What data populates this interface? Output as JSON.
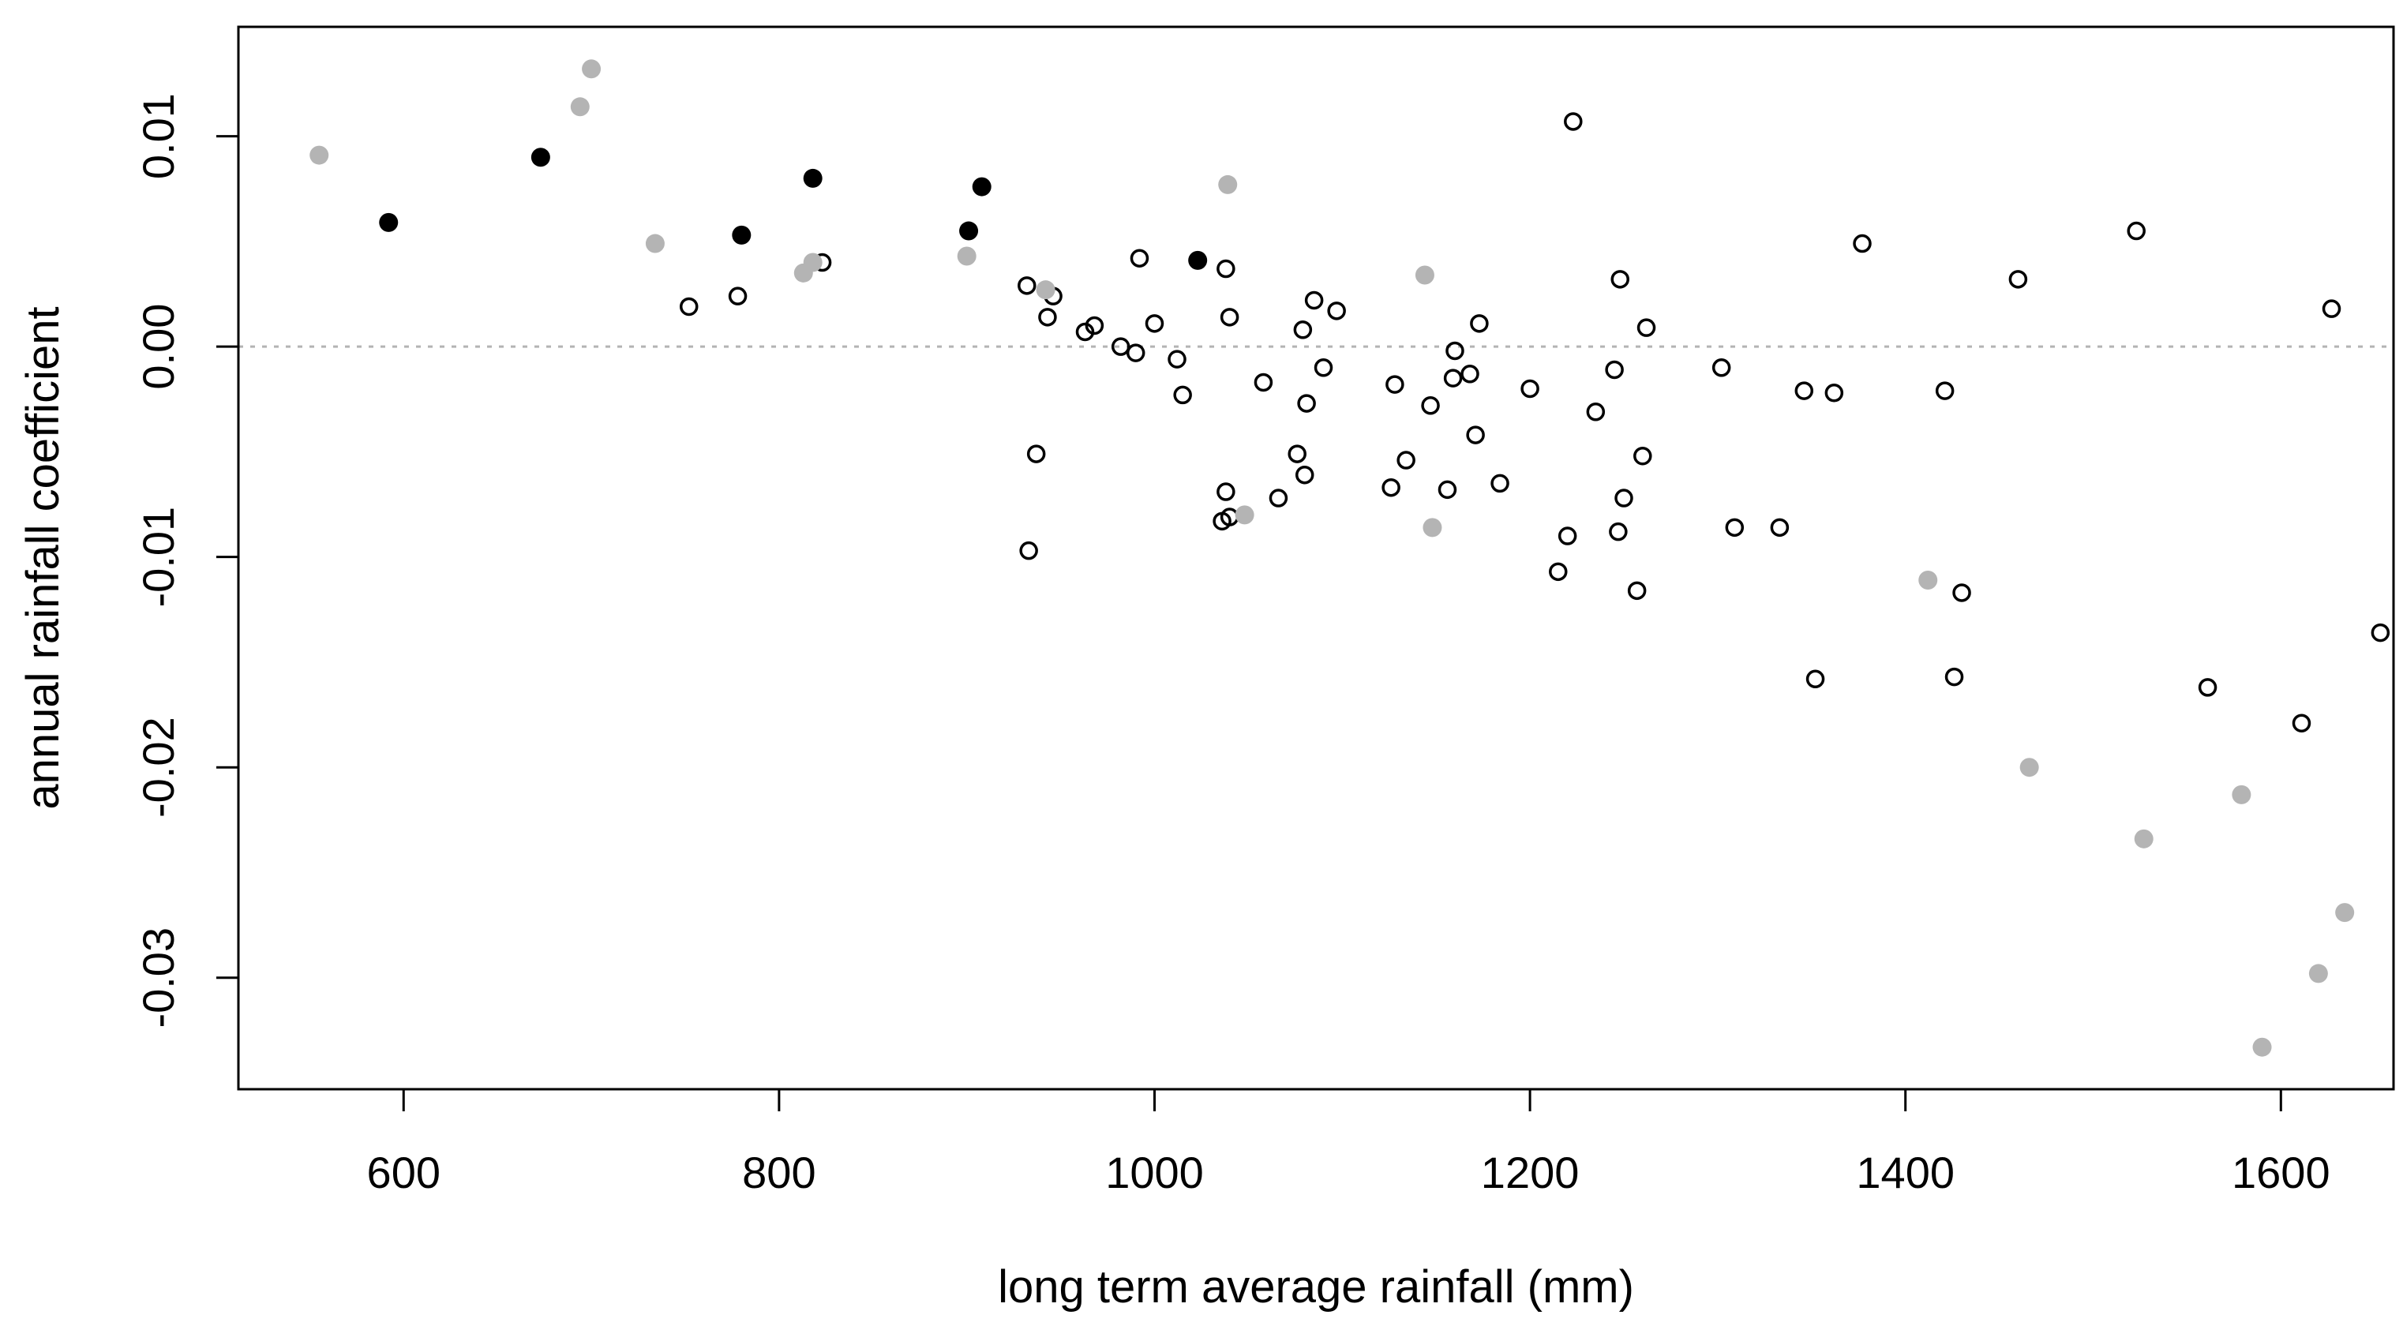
{
  "chart_data": {
    "type": "scatter",
    "title": "",
    "xlabel": "long term average rainfall (mm)",
    "ylabel": "annual rainfall coefficient",
    "xlim": [
      512,
      1660
    ],
    "ylim": [
      -0.0353,
      0.0152
    ],
    "x_ticks": [
      600,
      800,
      1000,
      1200,
      1400,
      1600
    ],
    "x_tick_labels": [
      "600",
      "800",
      "1000",
      "1200",
      "1400",
      "1600"
    ],
    "y_ticks": [
      0.01,
      0.0,
      -0.01,
      -0.02,
      -0.03
    ],
    "y_tick_labels": [
      "0.01",
      "0.00",
      "-0.01",
      "-0.02",
      "-0.03"
    ],
    "reference_line": {
      "y": 0.0,
      "style": "dotted",
      "color": "#b4b4b4"
    },
    "grid": false,
    "legend": "none",
    "series": [
      {
        "name": "solid-black",
        "marker": "filled",
        "color": "#000000",
        "points": [
          [
            592,
            0.0059
          ],
          [
            673,
            0.009
          ],
          [
            780,
            0.0053
          ],
          [
            818,
            0.008
          ],
          [
            901,
            0.0055
          ],
          [
            908,
            0.0076
          ],
          [
            1023,
            0.0041
          ]
        ]
      },
      {
        "name": "solid-grey",
        "marker": "filled",
        "color": "#b4b4b4",
        "points": [
          [
            555,
            0.0091
          ],
          [
            694,
            0.0114
          ],
          [
            700,
            0.0132
          ],
          [
            734,
            0.0049
          ],
          [
            813,
            0.0035
          ],
          [
            818,
            0.004
          ],
          [
            900,
            0.0043
          ],
          [
            942,
            0.0027
          ],
          [
            1039,
            0.0077
          ],
          [
            1048,
            -0.008
          ],
          [
            1144,
            0.0034
          ],
          [
            1148,
            -0.0086
          ],
          [
            1412,
            -0.0111
          ],
          [
            1466,
            -0.02
          ],
          [
            1527,
            -0.0234
          ],
          [
            1579,
            -0.0213
          ],
          [
            1590,
            -0.0333
          ],
          [
            1620,
            -0.0298
          ],
          [
            1634,
            -0.0269
          ]
        ]
      },
      {
        "name": "hollow",
        "marker": "open",
        "color": "#000000",
        "points": [
          [
            752,
            0.0019
          ],
          [
            778,
            0.0024
          ],
          [
            823,
            0.004
          ],
          [
            932,
            0.0029
          ],
          [
            943,
            0.0014
          ],
          [
            946,
            0.0024
          ],
          [
            937,
            -0.0051
          ],
          [
            933,
            -0.0097
          ],
          [
            963,
            0.0007
          ],
          [
            968,
            0.001
          ],
          [
            982,
            0.0
          ],
          [
            990,
            -0.0003
          ],
          [
            992,
            0.0042
          ],
          [
            1000,
            0.0011
          ],
          [
            1012,
            -0.0006
          ],
          [
            1015,
            -0.0023
          ],
          [
            1038,
            0.0037
          ],
          [
            1040,
            0.0014
          ],
          [
            1038,
            -0.0069
          ],
          [
            1036,
            -0.0083
          ],
          [
            1040,
            -0.0081
          ],
          [
            1058,
            -0.0017
          ],
          [
            1066,
            -0.0072
          ],
          [
            1076,
            -0.0051
          ],
          [
            1079,
            0.0008
          ],
          [
            1080,
            -0.0061
          ],
          [
            1081,
            -0.0027
          ],
          [
            1085,
            0.0022
          ],
          [
            1090,
            -0.001
          ],
          [
            1097,
            0.0017
          ],
          [
            1126,
            -0.0067
          ],
          [
            1128,
            -0.0018
          ],
          [
            1134,
            -0.0054
          ],
          [
            1147,
            -0.0028
          ],
          [
            1156,
            -0.0068
          ],
          [
            1159,
            -0.0015
          ],
          [
            1160,
            -0.0002
          ],
          [
            1168,
            -0.0013
          ],
          [
            1171,
            -0.0042
          ],
          [
            1173,
            0.0011
          ],
          [
            1184,
            -0.0065
          ],
          [
            1200,
            -0.002
          ],
          [
            1215,
            -0.0107
          ],
          [
            1220,
            -0.009
          ],
          [
            1223,
            0.0107
          ],
          [
            1235,
            -0.0031
          ],
          [
            1245,
            -0.0011
          ],
          [
            1247,
            -0.0088
          ],
          [
            1248,
            0.0032
          ],
          [
            1250,
            -0.0072
          ],
          [
            1257,
            -0.0116
          ],
          [
            1260,
            -0.0052
          ],
          [
            1262,
            0.0009
          ],
          [
            1302,
            -0.001
          ],
          [
            1309,
            -0.0086
          ],
          [
            1333,
            -0.0086
          ],
          [
            1346,
            -0.0021
          ],
          [
            1352,
            -0.0158
          ],
          [
            1362,
            -0.0022
          ],
          [
            1377,
            0.0049
          ],
          [
            1421,
            -0.0021
          ],
          [
            1426,
            -0.0157
          ],
          [
            1430,
            -0.0117
          ],
          [
            1460,
            0.0032
          ],
          [
            1523,
            0.0055
          ],
          [
            1561,
            -0.0162
          ],
          [
            1611,
            -0.0179
          ],
          [
            1627,
            0.0018
          ],
          [
            1653,
            -0.0136
          ]
        ]
      }
    ]
  }
}
